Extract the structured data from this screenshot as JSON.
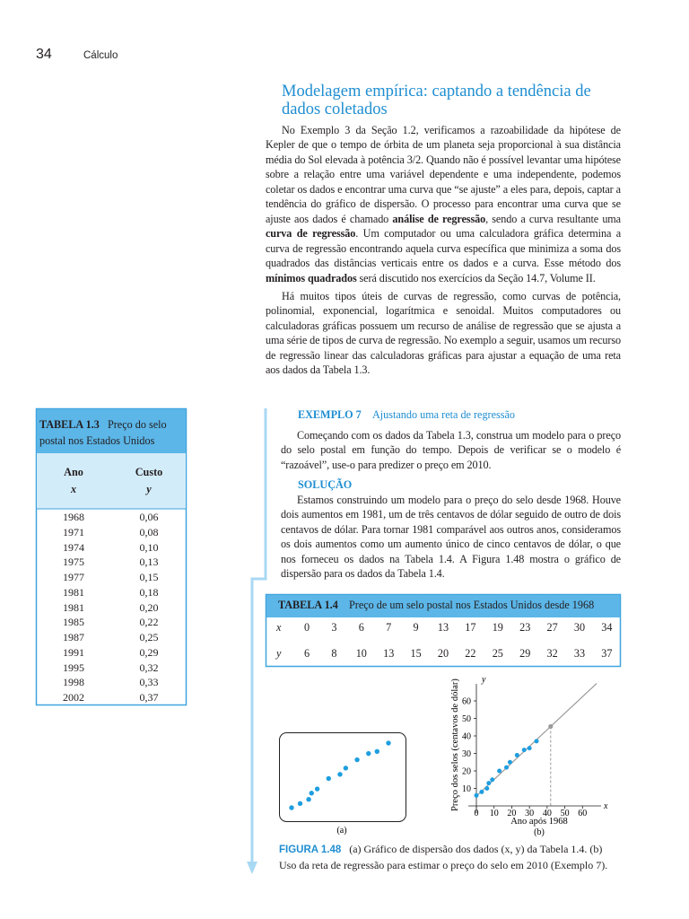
{
  "header": {
    "page_number": "34",
    "running_title": "Cálculo"
  },
  "section": {
    "title": "Modelagem empírica: captando a tendência de dados coletados",
    "paragraphs": [
      [
        {
          "text": "No Exemplo 3 da Seção 1.2, verificamos a razoabilidade da hipótese de Kepler de que o tempo de órbita de um planeta seja proporcional à sua distância média do Sol elevada à potência 3/2. Quando não é possível levantar uma hipótese sobre a relação entre uma variável dependente e uma independente, podemos coletar os dados e encontrar uma curva que “se ajuste” a eles para, depois, captar a tendência do gráfico de dispersão. O processo para encontrar uma curva que se ajuste aos dados é chamado ",
          "bold": false
        },
        {
          "text": "análise de regressão",
          "bold": true
        },
        {
          "text": ", sendo a curva resultante uma ",
          "bold": false
        },
        {
          "text": "curva de regressão",
          "bold": true
        },
        {
          "text": ". Um computador ou uma calculadora gráfica determina a curva de regressão encontrando aquela curva específica que minimiza a soma dos quadrados das distâncias verticais entre os dados e a curva. Esse método dos ",
          "bold": false
        },
        {
          "text": "mínimos quadrados",
          "bold": true
        },
        {
          "text": " será discutido nos exercícios da Seção 14.7, Volume II.",
          "bold": false
        }
      ],
      [
        {
          "text": "Há muitos tipos úteis de curvas de regressão, como curvas de potência, polinomial, exponencial, logarítmica e senoidal. Muitos computadores ou calculadoras gráficas possuem um recurso de análise de regressão que se ajusta a uma série de tipos de curva de regressão. No exemplo a seguir, usamos um recurso de regressão linear das calculadoras gráficas para ajustar a equação de uma reta aos dados da Tabela 1.3.",
          "bold": false
        }
      ]
    ]
  },
  "table_1_3": {
    "label": "TABELA 1.3",
    "caption": "Preço do selo postal nos Estados Unidos",
    "columns": [
      {
        "name": "Ano",
        "var": "x"
      },
      {
        "name": "Custo",
        "var": "y"
      }
    ],
    "rows": [
      [
        "1968",
        "0,06"
      ],
      [
        "1971",
        "0,08"
      ],
      [
        "1974",
        "0,10"
      ],
      [
        "1975",
        "0,13"
      ],
      [
        "1977",
        "0,15"
      ],
      [
        "1981",
        "0,18"
      ],
      [
        "1981",
        "0,20"
      ],
      [
        "1985",
        "0,22"
      ],
      [
        "1987",
        "0,25"
      ],
      [
        "1991",
        "0,29"
      ],
      [
        "1995",
        "0,32"
      ],
      [
        "1998",
        "0,33"
      ],
      [
        "2002",
        "0,37"
      ]
    ]
  },
  "example": {
    "label": "EXEMPLO 7",
    "title": "Ajustando uma reta de regressão",
    "text": "Começando com os dados da Tabela 1.3, construa um modelo para o preço do selo postal em função do tempo. Depois de verificar se o modelo é “razoável”, use-o para predizer o preço em 2010.",
    "solution_label": "SOLUÇÃO",
    "solution_text": "Estamos construindo um modelo para o preço do selo desde 1968. Houve dois aumentos em 1981, um de três centavos de dólar seguido de outro de dois centavos de dólar. Para tornar 1981 comparável aos outros anos, consideramos os dois aumentos como um aumento único de cinco centavos de dólar, o que nos forneceu os dados na Tabela 1.4. A Figura 1.48 mostra o gráfico de dispersão para os dados da Tabela 1.4."
  },
  "table_1_4": {
    "label": "TABELA 1.4",
    "caption": "Preço de um selo postal nos Estados Unidos desde 1968",
    "x_label": "x",
    "y_label": "y",
    "x": [
      0,
      3,
      6,
      7,
      9,
      13,
      17,
      19,
      23,
      27,
      30,
      34
    ],
    "y": [
      6,
      8,
      10,
      13,
      15,
      20,
      22,
      25,
      29,
      32,
      33,
      37
    ]
  },
  "figure": {
    "panel_a_label": "(a)",
    "panel_b_label": "(b)",
    "x_axis_letter": "x",
    "y_axis_letter": "y",
    "x_title": "Ano após 1968",
    "y_title": "Preço dos selos (centavos de dólar)",
    "xlim": [
      0,
      70
    ],
    "ylim": [
      0,
      70
    ],
    "xticks": [
      0,
      10,
      20,
      30,
      40,
      50,
      60
    ],
    "yticks": [
      10,
      20,
      30,
      40,
      50,
      60
    ],
    "regression_line": {
      "x": [
        0,
        68
      ],
      "y": [
        5.6,
        70
      ]
    },
    "estimate": {
      "x": 42,
      "y": 45.4
    },
    "caption_label": "FIGURA 1.48",
    "caption": "(a) Gráfico de dispersão dos dados (x, y) da Tabela 1.4. (b) Uso da reta de regressão para estimar o preço do selo em 2010 (Exemplo 7)."
  }
}
